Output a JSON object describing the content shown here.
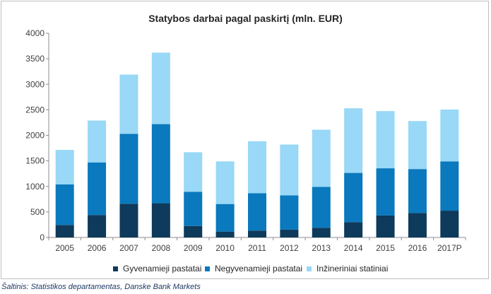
{
  "chart_data": {
    "type": "bar",
    "stacked": true,
    "title": "Statybos darbai pagal paskirtį (mln. EUR)",
    "categories": [
      "2005",
      "2006",
      "2007",
      "2008",
      "2009",
      "2010",
      "2011",
      "2012",
      "2013",
      "2014",
      "2015",
      "2016",
      "2017P"
    ],
    "series": [
      {
        "name": "Gyvenamieji pastatai",
        "color": "#0e3a5b",
        "values": [
          245,
          440,
          660,
          670,
          225,
          115,
          135,
          155,
          190,
          300,
          430,
          480,
          525
        ]
      },
      {
        "name": "Negyvenamieji pastatai",
        "color": "#0a79bd",
        "values": [
          795,
          1030,
          1370,
          1550,
          670,
          540,
          730,
          670,
          800,
          965,
          925,
          860,
          965
        ]
      },
      {
        "name": "Inžineriniai statiniai",
        "color": "#99d8f6",
        "values": [
          675,
          820,
          1160,
          1400,
          775,
          835,
          1020,
          995,
          1120,
          1265,
          1120,
          940,
          1015
        ]
      }
    ],
    "ylim": [
      0,
      4000
    ],
    "yticks": [
      "0",
      "500",
      "1000",
      "1500",
      "2000",
      "2500",
      "3000",
      "3500",
      "4000"
    ],
    "ytick_values": [
      0,
      500,
      1000,
      1500,
      2000,
      2500,
      3000,
      3500,
      4000
    ],
    "grid": false,
    "legend_position": "bottom"
  },
  "source_note": "Šaltinis: Statistikos departamentas, Danske Bank Markets"
}
